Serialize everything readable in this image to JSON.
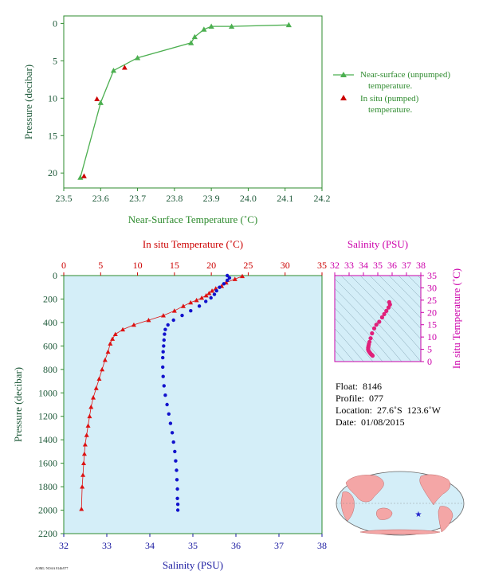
{
  "chart_data": [
    {
      "type": "line",
      "name": "near-surface-temperature",
      "xlabel": "Near-Surface Temperature (˚C)",
      "ylabel": "Pressure (decibar)",
      "xlim": [
        23.5,
        24.2
      ],
      "ylim": [
        22,
        -1
      ],
      "xticks": [
        "23.5",
        "23.6",
        "23.7",
        "23.8",
        "23.9",
        "24.0",
        "24.1",
        "24.2"
      ],
      "yticks": [
        "0",
        "5",
        "10",
        "15",
        "20"
      ],
      "grid": false,
      "legend_position": "right",
      "series": [
        {
          "name": "Near-surface (unpumped) temperature.",
          "marker": "triangle",
          "color": "#4caf50",
          "x": [
            24.11,
            23.955,
            23.9,
            23.88,
            23.855,
            23.845,
            23.7,
            23.635,
            23.6,
            23.545
          ],
          "y": [
            0.2,
            0.4,
            0.4,
            0.8,
            1.8,
            2.6,
            4.6,
            6.3,
            10.6,
            20.6
          ]
        },
        {
          "name": "In situ (pumped) temperature.",
          "marker": "triangle",
          "color": "#cc0000",
          "x": [
            23.665,
            23.59,
            23.555
          ],
          "y": [
            5.9,
            10.1,
            20.4
          ]
        }
      ]
    },
    {
      "type": "scatter",
      "name": "profile",
      "ylabel": "Pressure (decibar)",
      "ylim": [
        2200,
        0
      ],
      "yticks": [
        "0",
        "200",
        "400",
        "600",
        "800",
        "1000",
        "1200",
        "1400",
        "1600",
        "1800",
        "2000",
        "2200"
      ],
      "top_axis": {
        "label": "In situ Temperature (˚C)",
        "lim": [
          0,
          35
        ],
        "ticks": [
          "0",
          "5",
          "10",
          "15",
          "20",
          "25",
          "30",
          "35"
        ]
      },
      "bottom_axis": {
        "label": "Salinity (PSU)",
        "lim": [
          32,
          38
        ],
        "ticks": [
          "32",
          "33",
          "34",
          "35",
          "36",
          "37",
          "38"
        ]
      },
      "background": "#d4eef8",
      "grid": false,
      "series": [
        {
          "name": "temperature",
          "marker": "triangle",
          "color": "#dd1111",
          "axis": "top",
          "x": [
            24.2,
            23.2,
            22.0,
            21.4,
            20.6,
            20.1,
            19.7,
            19.3,
            18.7,
            18.0,
            17.2,
            16.2,
            15.0,
            13.5,
            11.5,
            9.5,
            8.0,
            7.0,
            6.6,
            6.3,
            6.0,
            5.6,
            5.2,
            4.8,
            4.4,
            4.0,
            3.7,
            3.5,
            3.3,
            3.1,
            2.9,
            2.8,
            2.7,
            2.6,
            2.5,
            2.4
          ],
          "y": [
            5,
            30,
            60,
            90,
            110,
            130,
            150,
            170,
            190,
            210,
            230,
            260,
            300,
            340,
            380,
            420,
            460,
            500,
            540,
            580,
            650,
            720,
            800,
            880,
            960,
            1040,
            1120,
            1200,
            1280,
            1360,
            1440,
            1520,
            1600,
            1700,
            1800,
            1990
          ]
        },
        {
          "name": "salinity",
          "marker": "circle",
          "color": "#1111cc",
          "axis": "bottom",
          "x": [
            35.8,
            35.85,
            35.8,
            35.72,
            35.62,
            35.55,
            35.5,
            35.42,
            35.3,
            35.15,
            34.95,
            34.75,
            34.55,
            34.42,
            34.36,
            34.34,
            34.33,
            34.32,
            34.31,
            34.3,
            34.3,
            34.31,
            34.33,
            34.36,
            34.4,
            34.44,
            34.48,
            34.52,
            34.55,
            34.58,
            34.6,
            34.62,
            34.63,
            34.64,
            34.64,
            34.65,
            34.65
          ],
          "y": [
            0,
            20,
            40,
            70,
            100,
            130,
            160,
            190,
            220,
            260,
            300,
            340,
            380,
            420,
            460,
            500,
            550,
            600,
            650,
            700,
            780,
            860,
            940,
            1020,
            1100,
            1180,
            1260,
            1340,
            1420,
            1500,
            1580,
            1660,
            1740,
            1820,
            1900,
            1950,
            2000
          ]
        }
      ]
    },
    {
      "type": "scatter",
      "name": "ts-diagram",
      "xlabel": "Salinity (PSU)",
      "ylabel": "In situ Temperature (˚C)",
      "xlim": [
        32,
        38
      ],
      "ylim": [
        0,
        35
      ],
      "xticks": [
        "32",
        "33",
        "34",
        "35",
        "36",
        "37",
        "38"
      ],
      "yticks": [
        "0",
        "5",
        "10",
        "15",
        "20",
        "25",
        "30",
        "35"
      ],
      "background": "#d4eef8",
      "series": [
        {
          "name": "T-S",
          "marker": "circle",
          "color": "#e0207a",
          "x": [
            35.8,
            35.85,
            35.75,
            35.6,
            35.45,
            35.3,
            35.1,
            34.9,
            34.75,
            34.6,
            34.5,
            34.42,
            34.38,
            34.35,
            34.33,
            34.33,
            34.35,
            34.4,
            34.45,
            34.5,
            34.55,
            34.6,
            34.64
          ],
          "y": [
            24.2,
            23.2,
            22.0,
            20.6,
            19.3,
            18.0,
            16.2,
            15.0,
            13.5,
            11.5,
            9.5,
            8.0,
            7.0,
            6.3,
            5.6,
            5.0,
            4.5,
            4.0,
            3.6,
            3.2,
            2.9,
            2.7,
            2.4
          ]
        }
      ]
    }
  ],
  "info": {
    "float": "Float:  8146",
    "profile": "Profile:  077",
    "location": "Location:  27.6˚S  123.6˚W",
    "date": "Date:  01/08/2015"
  },
  "map": {
    "marker_symbol": "★",
    "land_color": "#f4a6a6",
    "ocean_color": "#d4eef8",
    "marker_color": "#2222cc"
  },
  "credit": "AOML/ NOAA 8146/077"
}
